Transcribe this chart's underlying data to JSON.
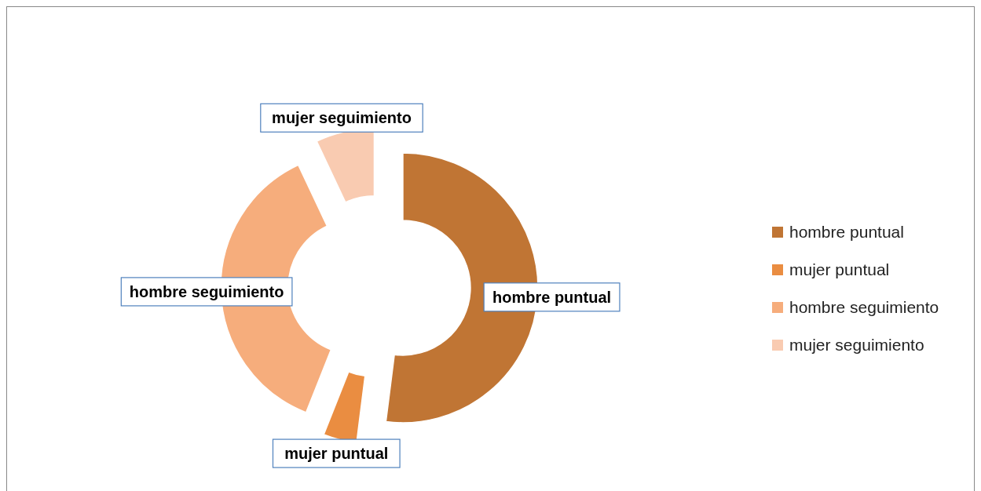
{
  "chart_data": {
    "type": "donut",
    "categories": [
      "hombre puntual",
      "mujer puntual",
      "hombre seguimiento",
      "mujer seguimiento"
    ],
    "values": [
      52,
      4,
      37,
      7
    ],
    "colors": [
      "#c07534",
      "#ea8d41",
      "#f6ad7c",
      "#f9cbb1"
    ],
    "legend": "right"
  }
}
